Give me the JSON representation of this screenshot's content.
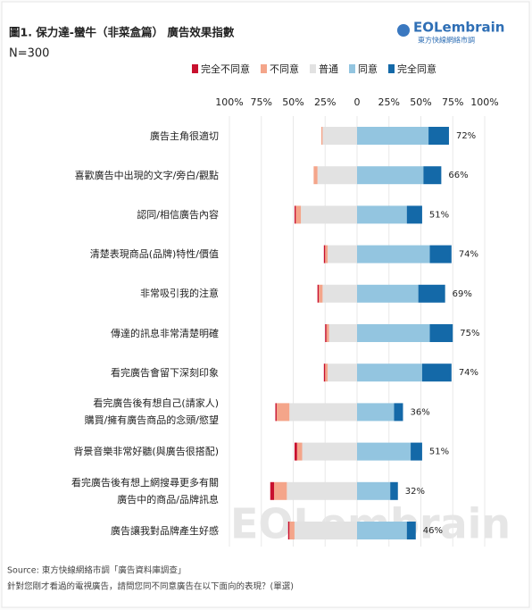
{
  "header": {
    "title": "圖1. 保力達-蠻牛（非菜盒篇） 廣告效果指數",
    "sample": "N=300",
    "logo": "EOLembrain",
    "logo_sub": "東方快線網絡市調"
  },
  "chart_data": {
    "type": "diverging-bar",
    "categories": [
      "廣告主角很適切",
      "喜歡廣告中出現的文字/旁白/觀點",
      "認同/相信廣告內容",
      "清楚表現商品(品牌)特性/價值",
      "非常吸引我的注意",
      "傳達的訊息非常清楚明確",
      "看完廣告會留下深刻印象",
      "看完廣告後有想自己(請家人)\n購買/擁有廣告商品的念頭/慾望",
      "背景音樂非常好聽(與廣告很搭配)",
      "看完廣告後有想上網搜尋更多有關\n廣告中的商品/品牌訊息",
      "廣告讓我對品牌產生好感"
    ],
    "series": [
      {
        "name": "完全不同意",
        "color": "#c8102e",
        "side": "negative",
        "values": [
          0,
          0,
          1,
          1,
          1,
          1,
          1,
          1,
          2,
          3,
          1
        ]
      },
      {
        "name": "不同意",
        "color": "#f4a58a",
        "side": "negative",
        "values": [
          1,
          3,
          4,
          2,
          3,
          2,
          2,
          10,
          4,
          10,
          4
        ]
      },
      {
        "name": "普通",
        "color": "#e2e2e2",
        "side": "negative",
        "values": [
          27,
          31,
          44,
          23,
          27,
          22,
          23,
          53,
          43,
          55,
          49
        ]
      },
      {
        "name": "同意",
        "color": "#93c5e0",
        "side": "positive",
        "values": [
          56,
          52,
          39,
          57,
          48,
          57,
          51,
          29,
          42,
          26,
          39
        ]
      },
      {
        "name": "完全同意",
        "color": "#1469a8",
        "side": "positive",
        "values": [
          16,
          14,
          12,
          17,
          21,
          18,
          23,
          7,
          9,
          6,
          7
        ]
      }
    ],
    "agree_totals": {
      "values": [
        72,
        66,
        51,
        74,
        69,
        75,
        74,
        36,
        51,
        32,
        46
      ],
      "value_labels": [
        "72%",
        "66%",
        "51%",
        "74%",
        "69%",
        "75%",
        "74%",
        "36%",
        "51%",
        "32%",
        "46%"
      ]
    },
    "xlim": [
      -100,
      100
    ],
    "xticks": [
      {
        "value": -100,
        "label": "100%"
      },
      {
        "value": -75,
        "label": "75%"
      },
      {
        "value": -50,
        "label": "50%"
      },
      {
        "value": -25,
        "label": "25%"
      },
      0,
      {
        "value": 25,
        "label": "25%"
      },
      {
        "value": 50,
        "label": "50%"
      },
      {
        "value": 75,
        "label": "75%"
      },
      {
        "value": 100,
        "label": "100%"
      }
    ],
    "grid": true
  },
  "watermark": "EOLembrain",
  "footer": {
    "source": "Source: 東方快線網絡市調「廣告資料庫調查」",
    "question": "針對您剛才看過的電視廣告，請問您同不同意廣告在以下面向的表現？(單選)"
  }
}
